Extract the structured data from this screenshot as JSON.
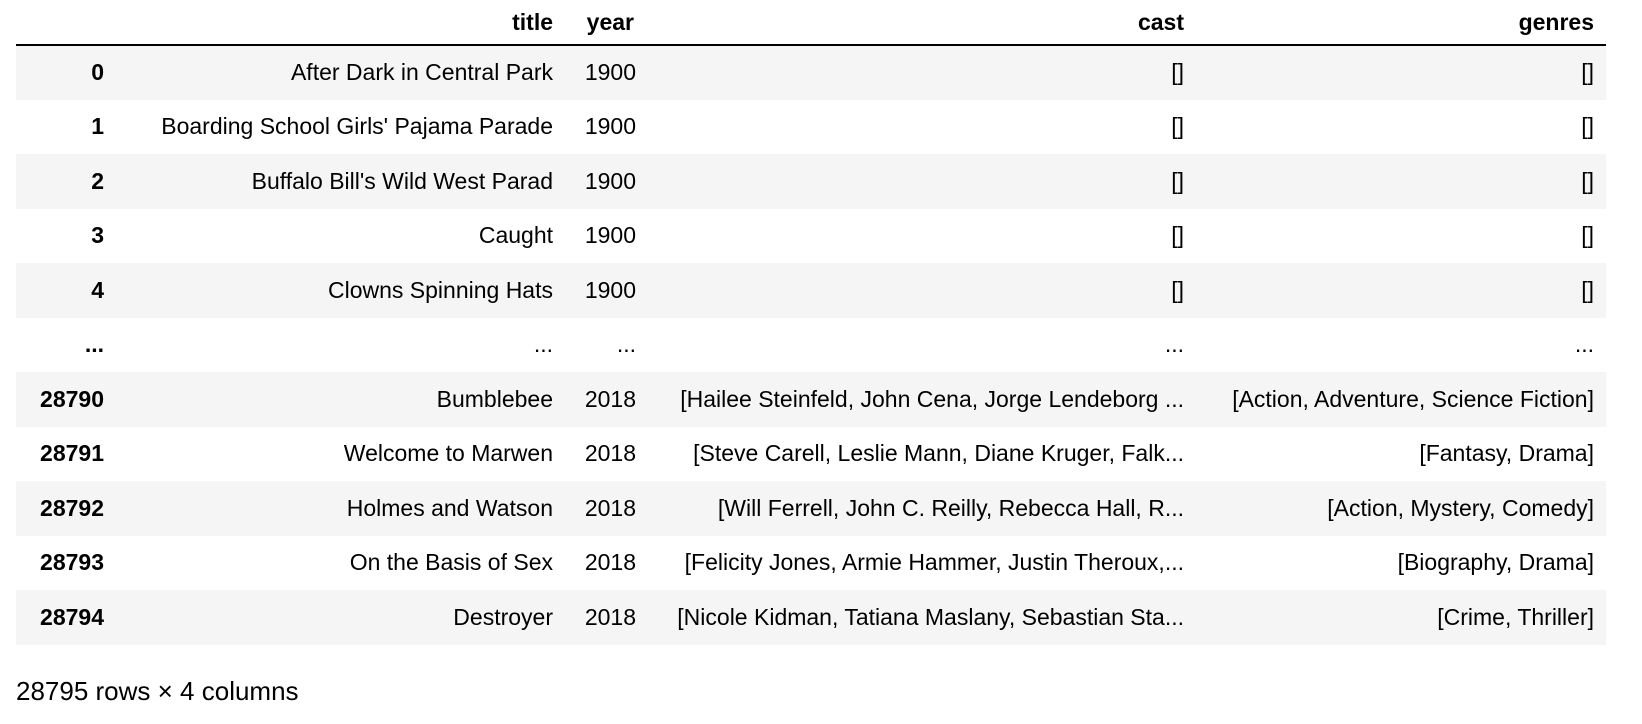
{
  "table": {
    "columns": [
      "",
      "title",
      "year",
      "cast",
      "genres"
    ],
    "rows": [
      {
        "index": "0",
        "title": "After Dark in Central Park",
        "year": "1900",
        "cast": "[]",
        "genres": "[]"
      },
      {
        "index": "1",
        "title": "Boarding School Girls' Pajama Parade",
        "year": "1900",
        "cast": "[]",
        "genres": "[]"
      },
      {
        "index": "2",
        "title": "Buffalo Bill's Wild West Parad",
        "year": "1900",
        "cast": "[]",
        "genres": "[]"
      },
      {
        "index": "3",
        "title": "Caught",
        "year": "1900",
        "cast": "[]",
        "genres": "[]"
      },
      {
        "index": "4",
        "title": "Clowns Spinning Hats",
        "year": "1900",
        "cast": "[]",
        "genres": "[]"
      },
      {
        "index": "...",
        "title": "...",
        "year": "...",
        "cast": "...",
        "genres": "..."
      },
      {
        "index": "28790",
        "title": "Bumblebee",
        "year": "2018",
        "cast": "[Hailee Steinfeld, John Cena, Jorge Lendeborg ...",
        "genres": "[Action, Adventure, Science Fiction]"
      },
      {
        "index": "28791",
        "title": "Welcome to Marwen",
        "year": "2018",
        "cast": "[Steve Carell, Leslie Mann, Diane Kruger, Falk...",
        "genres": "[Fantasy, Drama]"
      },
      {
        "index": "28792",
        "title": "Holmes and Watson",
        "year": "2018",
        "cast": "[Will Ferrell, John C. Reilly, Rebecca Hall, R...",
        "genres": "[Action, Mystery, Comedy]"
      },
      {
        "index": "28793",
        "title": "On the Basis of Sex",
        "year": "2018",
        "cast": "[Felicity Jones, Armie Hammer, Justin Theroux,...",
        "genres": "[Biography, Drama]"
      },
      {
        "index": "28794",
        "title": "Destroyer",
        "year": "2018",
        "cast": "[Nicole Kidman, Tatiana Maslany, Sebastian Sta...",
        "genres": "[Crime, Thriller]"
      }
    ]
  },
  "footer": {
    "shape_text": "28795 rows × 4 columns"
  },
  "colors": {
    "stripe": "#f5f5f5",
    "background": "#ffffff",
    "text": "#000000"
  }
}
